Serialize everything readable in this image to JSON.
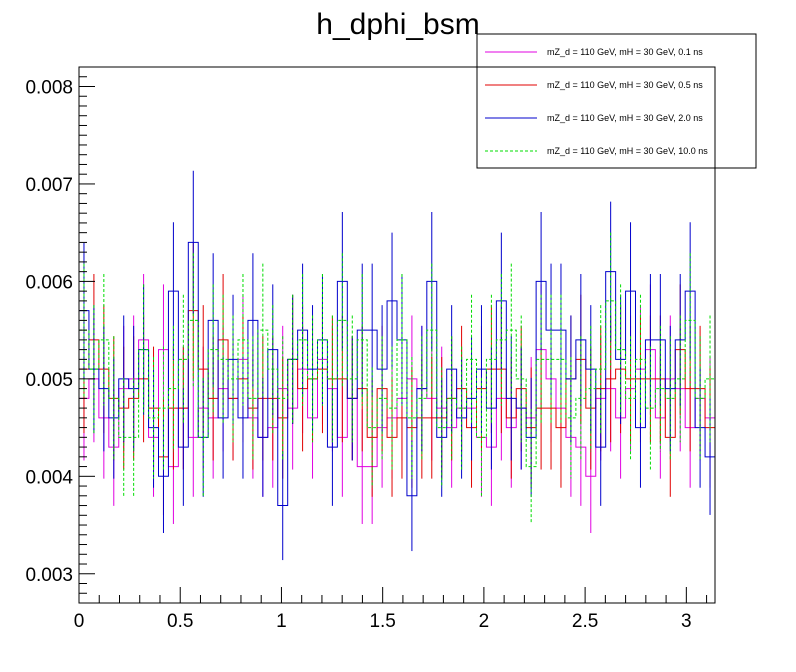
{
  "chart_data": {
    "type": "line",
    "title": "h_dphi_bsm",
    "xlabel": "",
    "ylabel": "",
    "xlim": [
      0,
      3.1416
    ],
    "ylim": [
      0.0027,
      0.0082
    ],
    "grid": false,
    "legend_position": "top-right",
    "bins": 64,
    "x_ticks": [
      0,
      0.5,
      1,
      1.5,
      2,
      2.5,
      3
    ],
    "x_tick_labels": [
      "0",
      "0.5",
      "1",
      "1.5",
      "2",
      "2.5",
      "3"
    ],
    "y_ticks": [
      0.003,
      0.004,
      0.005,
      0.006,
      0.007,
      0.008
    ],
    "y_tick_labels": [
      "0.003",
      "0.004",
      "0.005",
      "0.006",
      "0.007",
      "0.008"
    ],
    "series": [
      {
        "name": "mZ_d = 110 GeV, mH = 30 GeV, 0.1 ns",
        "color": "#e000e0",
        "style": "solid",
        "values": [
          0.0048,
          0.005,
          0.0046,
          0.0043,
          0.0049,
          0.005,
          0.0054,
          0.0044,
          0.0053,
          0.0041,
          0.0047,
          0.0044,
          0.0047,
          0.0046,
          0.0049,
          0.0048,
          0.0052,
          0.0046,
          0.0044,
          0.0045,
          0.0049,
          0.0047,
          0.0051,
          0.0046,
          0.0052,
          0.0049,
          0.0044,
          0.0048,
          0.0041,
          0.0041,
          0.0045,
          0.0046,
          0.0048,
          0.005,
          0.0049,
          0.0048,
          0.0047,
          0.0045,
          0.0047,
          0.0047,
          0.0044,
          0.0043,
          0.0048,
          0.0045,
          0.0047,
          0.0046,
          0.0053,
          0.005,
          0.0047,
          0.0044,
          0.0043,
          0.004,
          0.0048,
          0.0049,
          0.0046,
          0.0049,
          0.0051,
          0.0053,
          0.0046,
          0.005,
          0.0049,
          0.0045,
          0.0048,
          0.0046
        ]
      },
      {
        "name": "mZ_d = 110 GeV, mH = 30 GeV, 0.5 ns",
        "color": "#e00000",
        "style": "solid",
        "values": [
          0.0051,
          0.0054,
          0.0051,
          0.0048,
          0.0047,
          0.0048,
          0.005,
          0.0047,
          0.0042,
          0.0047,
          0.0047,
          0.0057,
          0.0051,
          0.0048,
          0.0054,
          0.0048,
          0.005,
          0.0047,
          0.0048,
          0.0048,
          0.0046,
          0.0052,
          0.0049,
          0.005,
          0.0051,
          0.005,
          0.005,
          0.0048,
          0.0049,
          0.0044,
          0.0049,
          0.0044,
          0.0046,
          0.0045,
          0.0046,
          0.0046,
          0.0046,
          0.0048,
          0.0049,
          0.0045,
          0.0049,
          0.0051,
          0.0051,
          0.0046,
          0.0049,
          0.0045,
          0.0047,
          0.0047,
          0.0045,
          0.005,
          0.0052,
          0.0047,
          0.0049,
          0.005,
          0.0051,
          0.005,
          0.005,
          0.005,
          0.005,
          0.0044,
          0.0053,
          0.0049,
          0.0049,
          0.0045
        ]
      },
      {
        "name": "mZ_d = 110 GeV, mH = 30 GeV, 2.0 ns",
        "color": "#0000cc",
        "style": "solid",
        "values": [
          0.0057,
          0.0051,
          0.0049,
          0.0046,
          0.005,
          0.0049,
          0.0053,
          0.0045,
          0.004,
          0.0059,
          0.0043,
          0.0064,
          0.0044,
          0.0056,
          0.0046,
          0.0052,
          0.0046,
          0.0056,
          0.0044,
          0.0053,
          0.0037,
          0.0052,
          0.0055,
          0.0051,
          0.0054,
          0.0043,
          0.006,
          0.0048,
          0.0055,
          0.0055,
          0.0051,
          0.0058,
          0.0054,
          0.0038,
          0.0049,
          0.006,
          0.0044,
          0.0051,
          0.0046,
          0.0048,
          0.0051,
          0.0047,
          0.0058,
          0.0048,
          0.0047,
          0.0044,
          0.006,
          0.0055,
          0.0055,
          0.005,
          0.0054,
          0.0051,
          0.0043,
          0.0061,
          0.0052,
          0.0059,
          0.0045,
          0.0054,
          0.0054,
          0.0049,
          0.0054,
          0.0059,
          0.0045,
          0.0042
        ]
      },
      {
        "name": "mZ_d = 110 GeV, mH = 30 GeV, 10.0 ns",
        "color": "#00dd00",
        "style": "dashed",
        "values": [
          0.0055,
          0.0051,
          0.0054,
          0.0048,
          0.0044,
          0.0044,
          0.0053,
          0.0046,
          0.0047,
          0.0049,
          0.0052,
          0.0056,
          0.0044,
          0.0053,
          0.0052,
          0.005,
          0.0054,
          0.0048,
          0.0055,
          0.0051,
          0.0048,
          0.0052,
          0.0054,
          0.005,
          0.0054,
          0.005,
          0.0056,
          0.005,
          0.0054,
          0.0045,
          0.0048,
          0.0047,
          0.0054,
          0.0046,
          0.0048,
          0.0055,
          0.0045,
          0.0048,
          0.0047,
          0.0052,
          0.0044,
          0.0052,
          0.0054,
          0.0055,
          0.005,
          0.0041,
          0.0052,
          0.0052,
          0.0052,
          0.0046,
          0.0048,
          0.0049,
          0.0051,
          0.0058,
          0.0053,
          0.0048,
          0.0052,
          0.0047,
          0.0049,
          0.0048,
          0.005,
          0.0056,
          0.0048,
          0.005
        ]
      }
    ]
  }
}
